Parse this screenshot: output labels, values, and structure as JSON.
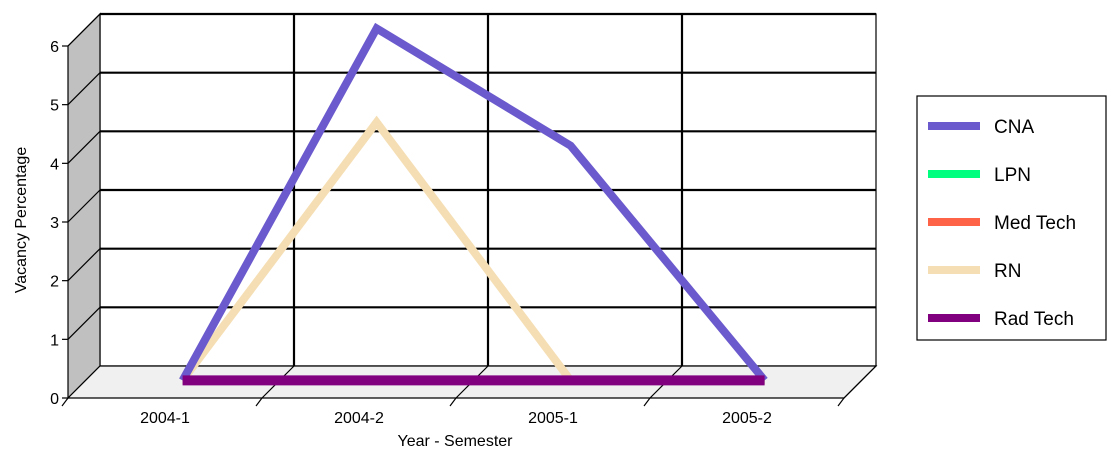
{
  "chart_data": {
    "type": "line",
    "style": "3d",
    "title": "",
    "xlabel": "Year - Semester",
    "ylabel": "Vacancy Percentage",
    "categories": [
      "2004-1",
      "2004-2",
      "2005-1",
      "2005-2"
    ],
    "ylim": [
      0,
      6
    ],
    "yticks": [
      "0",
      "1",
      "2",
      "3",
      "4",
      "5",
      "6"
    ],
    "grid": true,
    "legend_position": "right",
    "series": [
      {
        "name": "CNA",
        "color": "#6A5ACD",
        "values": [
          0,
          6,
          4,
          0
        ]
      },
      {
        "name": "LPN",
        "color": "#00FF7F",
        "values": [
          0,
          0,
          0,
          0
        ]
      },
      {
        "name": "Med Tech",
        "color": "#FF6347",
        "values": [
          0,
          0,
          0,
          0
        ]
      },
      {
        "name": "RN",
        "color": "#F5DEB3",
        "values": [
          0,
          4.4,
          0,
          0
        ]
      },
      {
        "name": "Rad Tech",
        "color": "#800080",
        "values": [
          0,
          0,
          0,
          0
        ]
      }
    ],
    "colors": {
      "side_wall": "#C0C0C0",
      "floor": "#F0F0F0",
      "frame": "#000000"
    }
  }
}
